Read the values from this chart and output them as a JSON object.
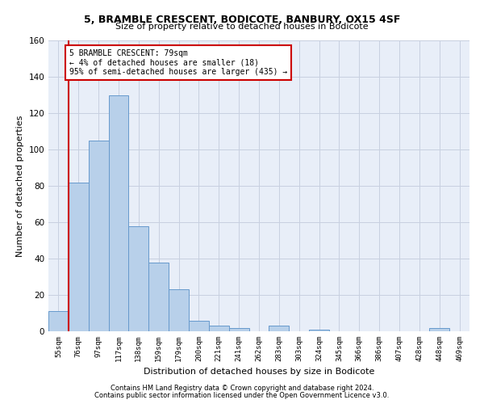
{
  "title1": "5, BRAMBLE CRESCENT, BODICOTE, BANBURY, OX15 4SF",
  "title2": "Size of property relative to detached houses in Bodicote",
  "xlabel": "Distribution of detached houses by size in Bodicote",
  "ylabel": "Number of detached properties",
  "footnote1": "Contains HM Land Registry data © Crown copyright and database right 2024.",
  "footnote2": "Contains public sector information licensed under the Open Government Licence v3.0.",
  "bar_labels": [
    "55sqm",
    "76sqm",
    "97sqm",
    "117sqm",
    "138sqm",
    "159sqm",
    "179sqm",
    "200sqm",
    "221sqm",
    "241sqm",
    "262sqm",
    "283sqm",
    "303sqm",
    "324sqm",
    "345sqm",
    "366sqm",
    "386sqm",
    "407sqm",
    "428sqm",
    "448sqm",
    "469sqm"
  ],
  "bar_values": [
    11,
    82,
    105,
    130,
    58,
    38,
    23,
    6,
    3,
    2,
    0,
    3,
    0,
    1,
    0,
    0,
    0,
    0,
    0,
    2,
    0
  ],
  "bar_color": "#b8d0ea",
  "bar_edge_color": "#6699cc",
  "grid_color": "#c8d0e0",
  "bg_color": "#e8eef8",
  "vline_x": 0.5,
  "vline_color": "#cc0000",
  "annotation_text": "5 BRAMBLE CRESCENT: 79sqm\n← 4% of detached houses are smaller (18)\n95% of semi-detached houses are larger (435) →",
  "annotation_box_color": "#cc0000",
  "ylim": [
    0,
    160
  ],
  "yticks": [
    0,
    20,
    40,
    60,
    80,
    100,
    120,
    140,
    160
  ]
}
